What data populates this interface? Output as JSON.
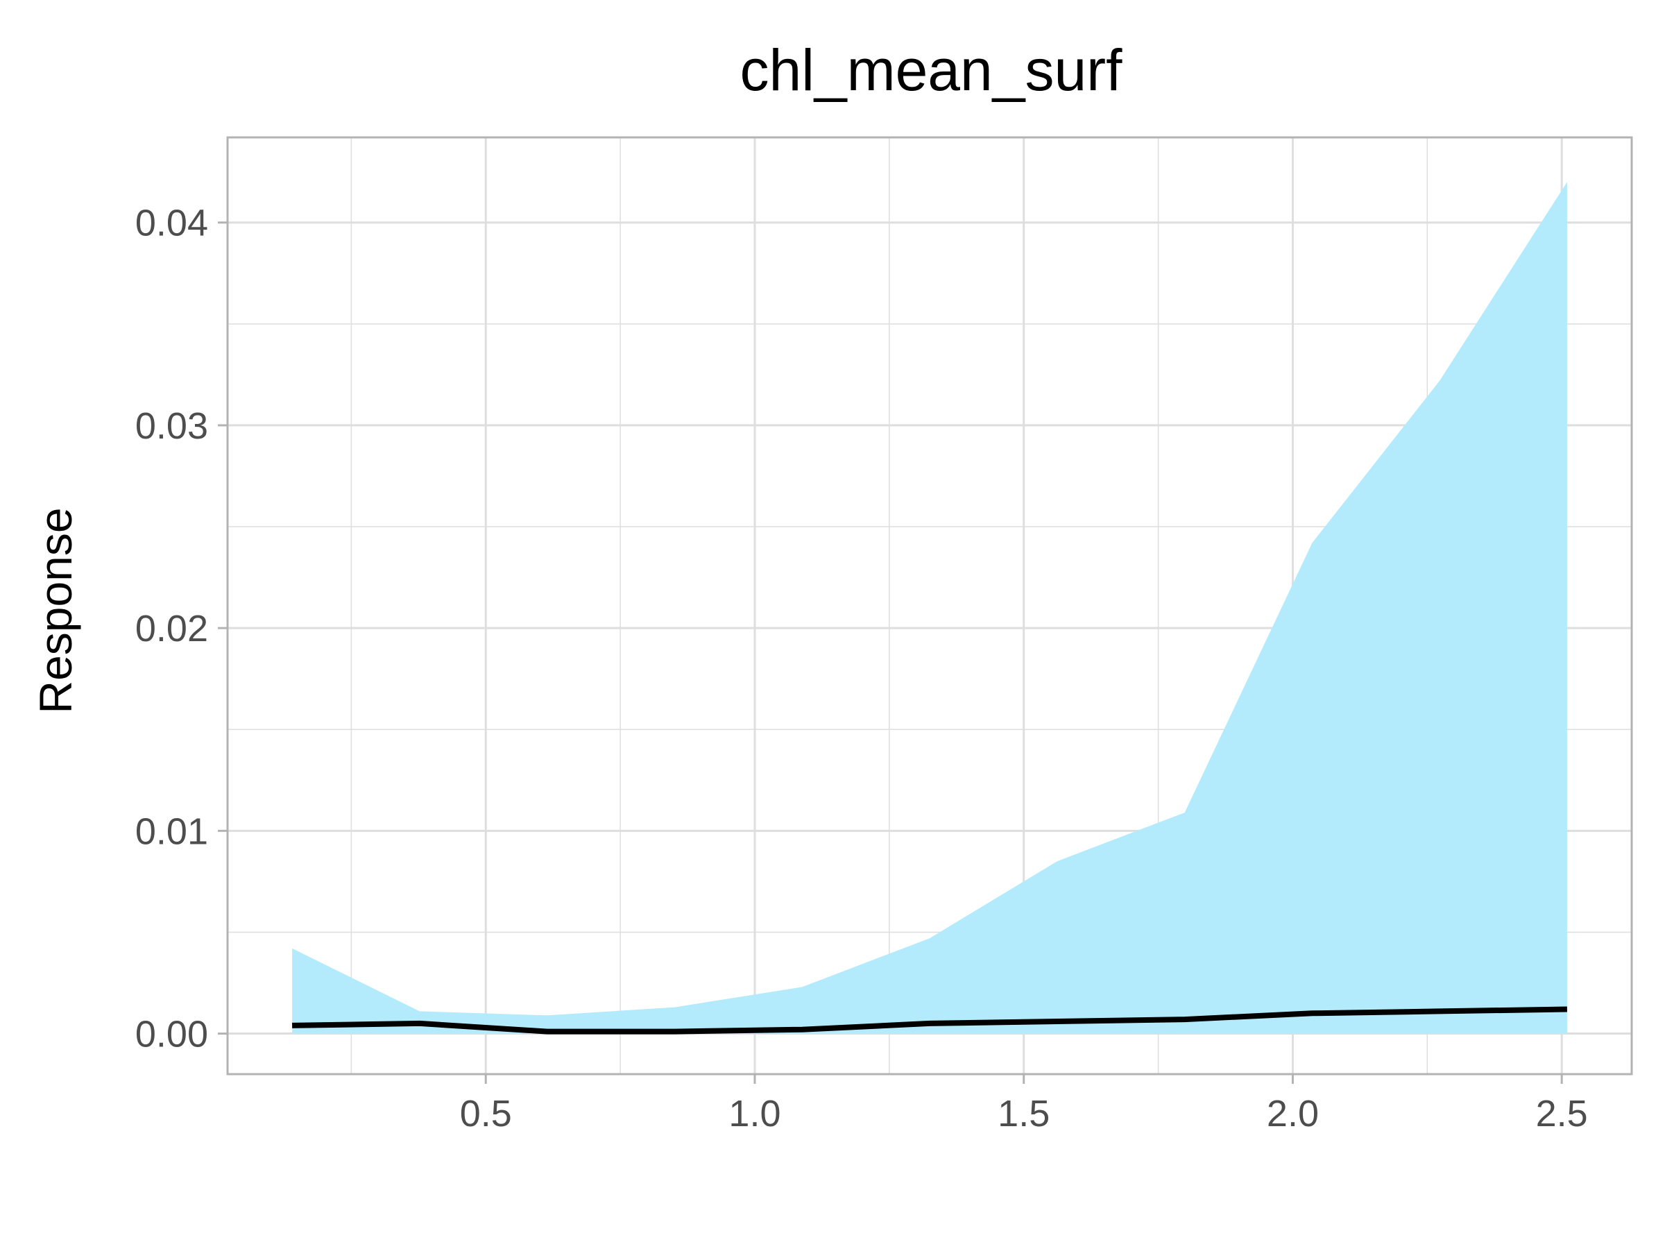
{
  "chart_data": {
    "type": "area",
    "title": "chl_mean_surf",
    "xlabel": "",
    "ylabel": "Response",
    "xlim": [
      0.02,
      2.63
    ],
    "ylim": [
      -0.002,
      0.0442
    ],
    "x_ticks": [
      "0.5",
      "1.0",
      "1.5",
      "2.0",
      "2.5"
    ],
    "x_tick_values": [
      0.5,
      1.0,
      1.5,
      2.0,
      2.5
    ],
    "y_ticks": [
      "0.00",
      "0.01",
      "0.02",
      "0.03",
      "0.04"
    ],
    "y_tick_values": [
      0.0,
      0.01,
      0.02,
      0.03,
      0.04
    ],
    "grid": true,
    "x": [
      0.14,
      0.377,
      0.614,
      0.851,
      1.088,
      1.325,
      1.562,
      1.799,
      2.036,
      2.273,
      2.51
    ],
    "band_lower": [
      0,
      0,
      0,
      0,
      0,
      0,
      0,
      0,
      0,
      0,
      0
    ],
    "band_upper": [
      0.0042,
      0.0011,
      0.0009,
      0.0013,
      0.0023,
      0.0047,
      0.0085,
      0.0109,
      0.0242,
      0.0322,
      0.042
    ],
    "line": [
      0.0004,
      0.0005,
      0.0001,
      0.0001,
      0.0002,
      0.0005,
      0.0006,
      0.0007,
      0.001,
      0.0011,
      0.0012
    ],
    "colors": {
      "band": "#b3ebfc",
      "line": "#000000",
      "grid": "#dedede",
      "border": "#b3b3b3"
    }
  }
}
